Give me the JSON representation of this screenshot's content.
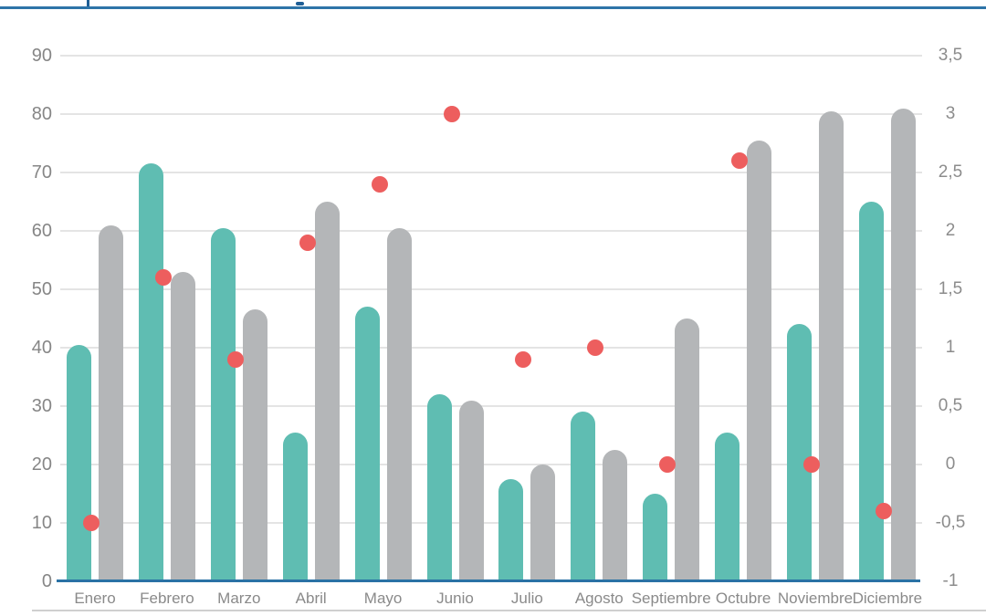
{
  "page": {
    "top_divider_color": "#2e74a8",
    "axis_line_color": "#2a72a5",
    "gridline_color": "#e4e4e4",
    "bottom_divider_color": "#cfcfcf"
  },
  "chart_data": {
    "type": "bar",
    "title": "",
    "subtitle": "",
    "categories": [
      "Enero",
      "Febrero",
      "Marzo",
      "Abril",
      "Mayo",
      "Junio",
      "Julio",
      "Agosto",
      "Septiembre",
      "Octubre",
      "Noviembre",
      "Diciembre"
    ],
    "series": [
      {
        "name": "bars-teal",
        "type": "bar",
        "axis": "left",
        "color": "#5fbdb2",
        "values": [
          40.5,
          71.5,
          60.5,
          25.5,
          47,
          32,
          17.5,
          29,
          15,
          25.5,
          44,
          65
        ]
      },
      {
        "name": "bars-gray",
        "type": "bar",
        "axis": "left",
        "color": "#b4b6b8",
        "values": [
          61,
          53,
          46.5,
          65,
          60.5,
          31,
          20,
          22.5,
          45,
          75.5,
          80.5,
          81
        ]
      },
      {
        "name": "dots-red",
        "type": "scatter",
        "axis": "right",
        "color": "#ed5e5e",
        "values": [
          -0.5,
          1.6,
          0.9,
          1.9,
          2.4,
          3,
          0.9,
          1,
          0,
          2.6,
          0,
          -0.4
        ]
      }
    ],
    "left_axis": {
      "min": 0,
      "max": 90,
      "step": 10,
      "tick_labels": [
        "0",
        "10",
        "20",
        "30",
        "40",
        "50",
        "60",
        "70",
        "80",
        "90"
      ]
    },
    "right_axis": {
      "min": -1,
      "max": 3.5,
      "step": 0.5,
      "tick_labels": [
        "-1",
        "-0,5",
        "0",
        "0,5",
        "1",
        "1,5",
        "2",
        "2,5",
        "3",
        "3,5"
      ]
    },
    "grid": true,
    "legend": false
  }
}
